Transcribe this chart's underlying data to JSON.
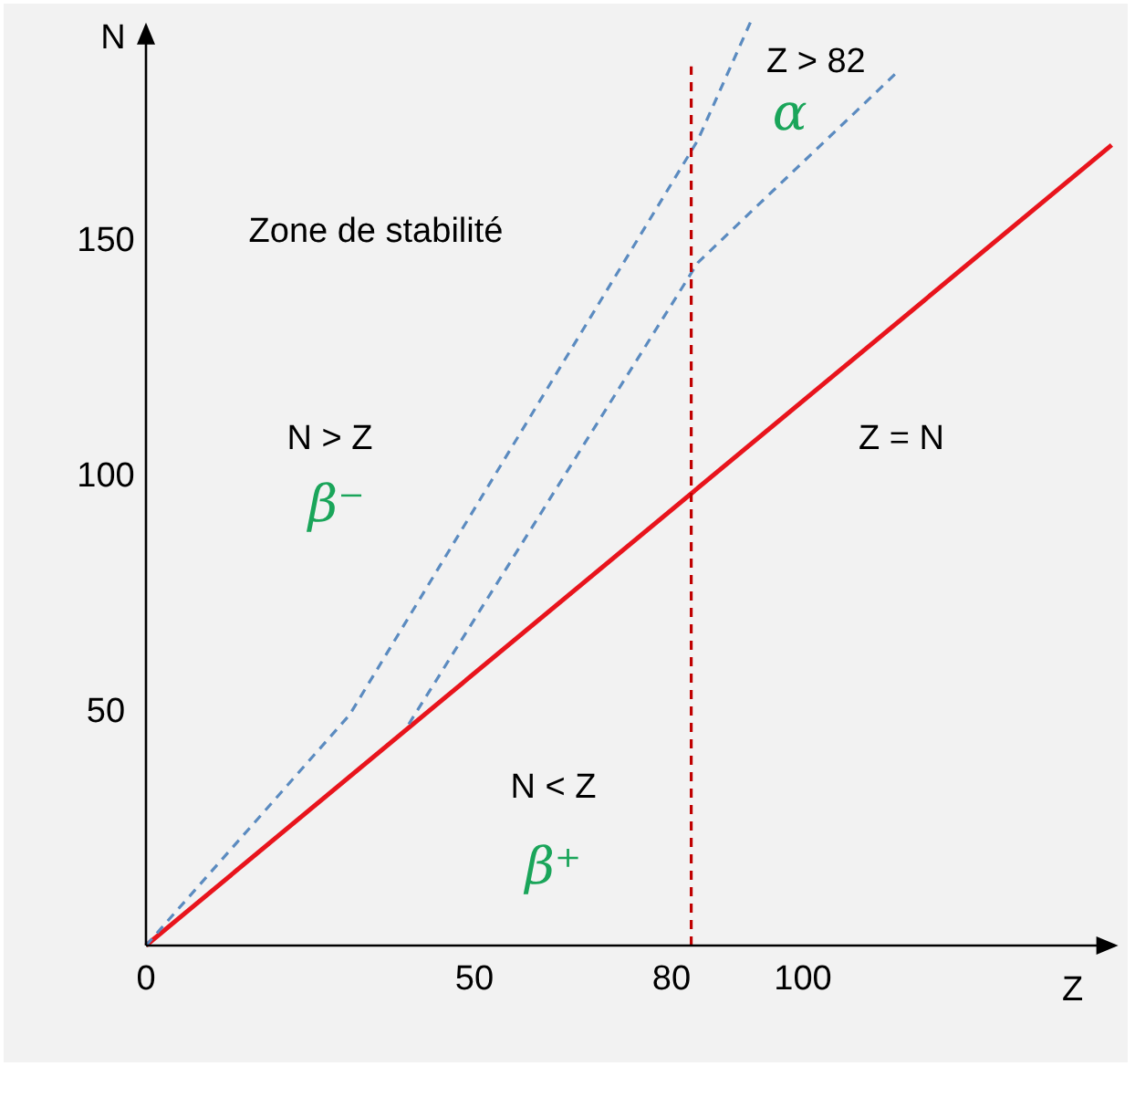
{
  "chart_data": {
    "type": "line",
    "xlabel": "Z",
    "ylabel": "N",
    "xlim": [
      0,
      148
    ],
    "ylim": [
      0,
      196
    ],
    "xticks": [
      0,
      50,
      80,
      100
    ],
    "yticks": [
      50,
      100,
      150
    ],
    "grid": false,
    "marker": "none",
    "series": [
      {
        "color": "#e8141c",
        "line_style": "solid",
        "x": [
          0,
          147
        ],
        "values": [
          0,
          170
        ]
      },
      {
        "color": "#5b8bc0",
        "line_style": "dashed",
        "x": [
          0,
          31,
          84,
          92
        ],
        "values": [
          0,
          49,
          171,
          196
        ]
      },
      {
        "color": "#5b8bc0",
        "line_style": "dashed",
        "x": [
          40,
          84,
          114
        ],
        "values": [
          47,
          145,
          185
        ]
      }
    ],
    "ref_lines": [
      {
        "axis": "x",
        "value": 83,
        "color": "#c00000",
        "line_style": "dashed"
      }
    ],
    "annotations": [
      "Zone de stabilité",
      "N > Z",
      "β⁻",
      "Z = N",
      "N < Z",
      "β⁺",
      "Z > 82",
      "α"
    ]
  }
}
